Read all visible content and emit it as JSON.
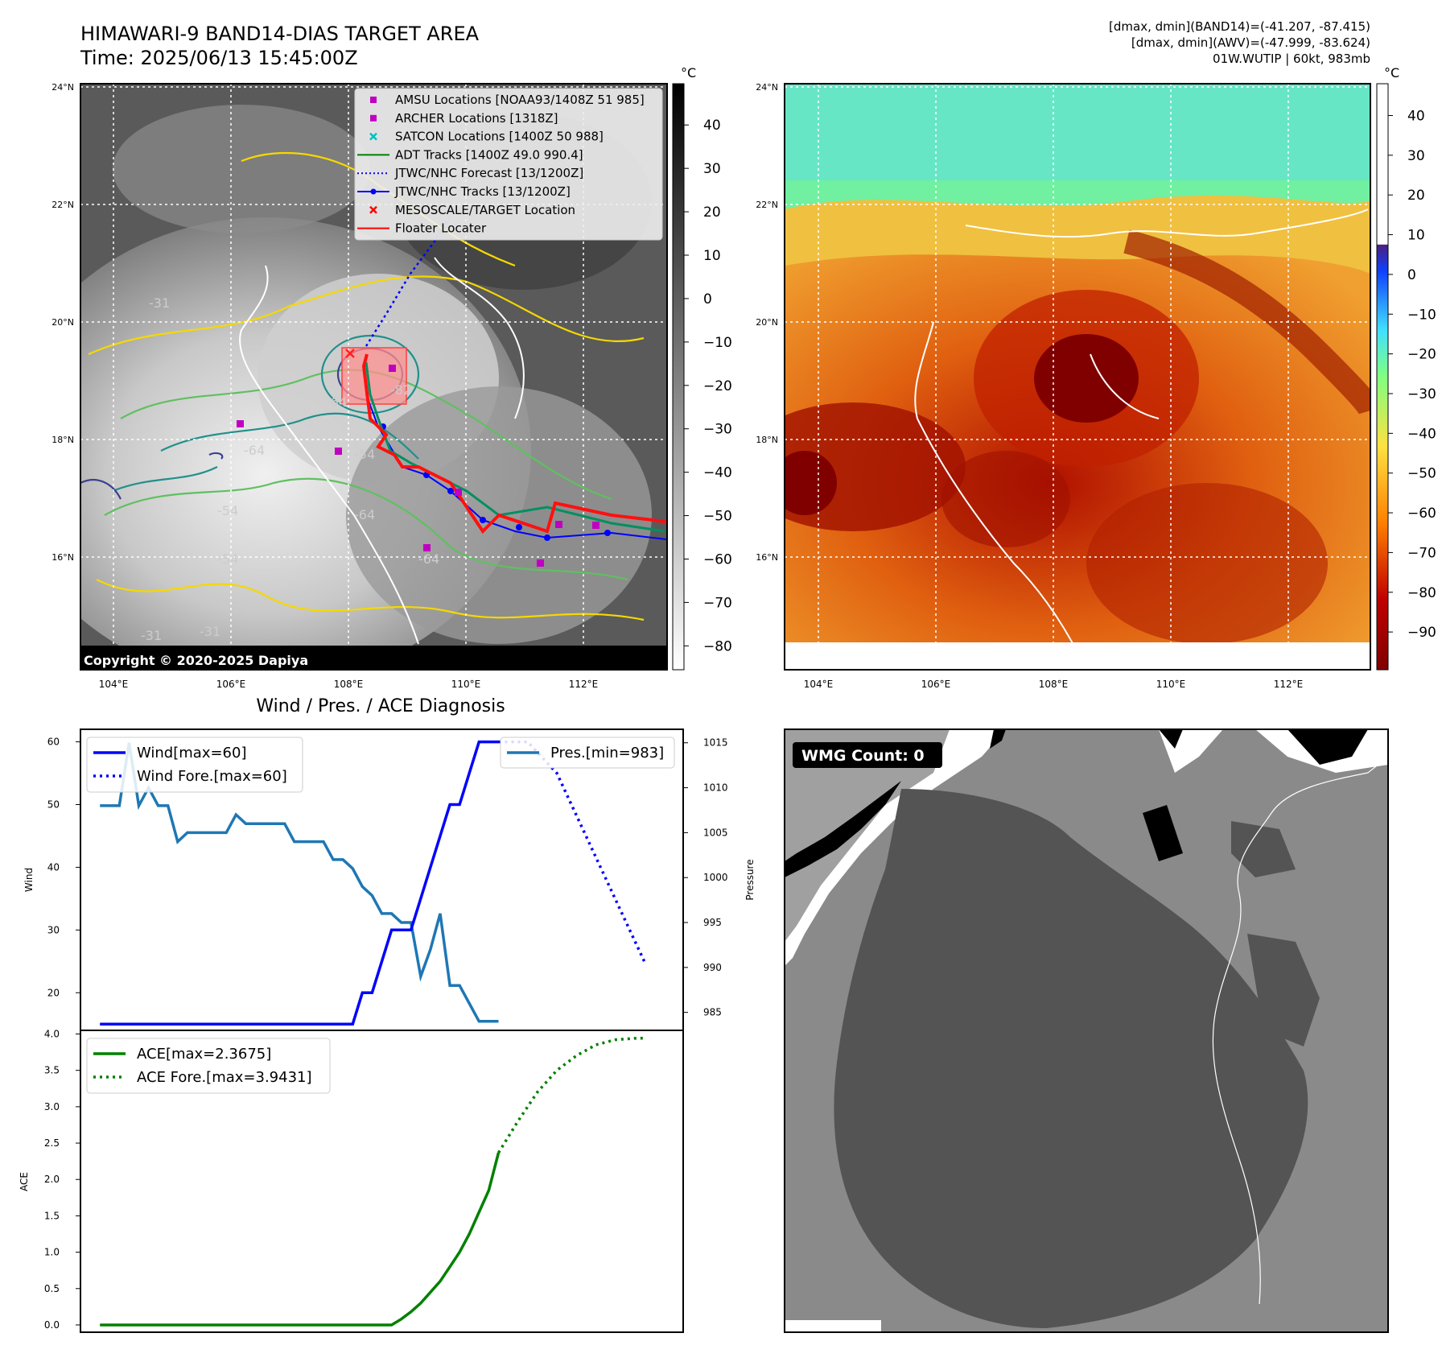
{
  "header": {
    "title": "HIMAWARI-9 BAND14-DIAS TARGET AREA",
    "time": "Time: 2025/06/13 15:45:00Z",
    "stats_band14": "[dmax, dmin](BAND14)=(-41.207, -87.415)",
    "stats_awv": "[dmax, dmin](AWV)=(-47.999, -83.624)",
    "storm": "01W.WUTIP | 60kt, 983mb"
  },
  "map": {
    "lat_labels": [
      "24°N",
      "22°N",
      "20°N",
      "18°N",
      "16°N"
    ],
    "lon_labels": [
      "104°E",
      "106°E",
      "108°E",
      "110°E",
      "112°E"
    ],
    "copyright": "Copyright © 2020-2025 Dapiya",
    "contour_labels": [
      "-31",
      "-54",
      "-64",
      "-54",
      "-64",
      "-82",
      "-64",
      "-54",
      "-31",
      "-31",
      "-64"
    ],
    "colorbar_left": {
      "unit": "°C",
      "ticks": [
        "40",
        "30",
        "20",
        "10",
        "0",
        "−10",
        "−20",
        "−30",
        "−40",
        "−50",
        "−60",
        "−70",
        "−80"
      ]
    },
    "colorbar_right": {
      "unit": "°C",
      "ticks": [
        "40",
        "30",
        "20",
        "10",
        "0",
        "−10",
        "−20",
        "−30",
        "−40",
        "−50",
        "−60",
        "−70",
        "−80",
        "−90"
      ]
    },
    "legend": [
      {
        "label": "AMSU Locations [NOAA93/1408Z 51 985]",
        "color": "#c000c0",
        "marker": "square"
      },
      {
        "label": "ARCHER Locations [1318Z]",
        "color": "#c000c0",
        "marker": "square"
      },
      {
        "label": "SATCON Locations [1400Z 50 988]",
        "color": "#00c0c0",
        "marker": "x"
      },
      {
        "label": "ADT Tracks [1400Z 49.0 990.4]",
        "color": "#008000",
        "marker": "line"
      },
      {
        "label": "JTWC/NHC Forecast [13/1200Z]",
        "color": "#0000ff",
        "marker": "dotted"
      },
      {
        "label": "JTWC/NHC Tracks [13/1200Z]",
        "color": "#0000ff",
        "marker": "line-dot"
      },
      {
        "label": "MESOSCALE/TARGET Location",
        "color": "#ff0000",
        "marker": "x"
      },
      {
        "label": "Floater Locater",
        "color": "#ff0000",
        "marker": "line"
      }
    ]
  },
  "wmg": {
    "label": "WMG Count: 0"
  },
  "chart_data": [
    {
      "type": "line",
      "title": "Wind / Pres. / ACE Diagnosis",
      "ylabel": "Wind",
      "y2label": "Pressure",
      "ylim": [
        14,
        62
      ],
      "y2lim": [
        983,
        1016.5
      ],
      "yticks": [
        "20",
        "30",
        "40",
        "50",
        "60"
      ],
      "y2ticks": [
        "985",
        "990",
        "995",
        "1000",
        "1005",
        "1010",
        "1015"
      ],
      "series": [
        {
          "name": "Wind[max=60]",
          "color": "#0000ff",
          "style": "solid",
          "axis": "left",
          "x": [
            0,
            1,
            2,
            3,
            4,
            5,
            6,
            7,
            8,
            9,
            10,
            11,
            12,
            13,
            14,
            15,
            16,
            17,
            18,
            19,
            20,
            21,
            22,
            23,
            24,
            25,
            26,
            27,
            28,
            29,
            30,
            31,
            32,
            33,
            34,
            35,
            36,
            37,
            38,
            39,
            40,
            41
          ],
          "values": [
            15,
            15,
            15,
            15,
            15,
            15,
            15,
            15,
            15,
            15,
            15,
            15,
            15,
            15,
            15,
            15,
            15,
            15,
            15,
            15,
            15,
            15,
            15,
            15,
            15,
            15,
            15,
            20,
            20,
            25,
            30,
            30,
            30,
            35,
            40,
            45,
            50,
            50,
            55,
            60,
            60,
            60
          ]
        },
        {
          "name": "Wind Fore.[max=60]",
          "color": "#0000ff",
          "style": "dotted",
          "axis": "left",
          "x": [
            41,
            44,
            47,
            50,
            53,
            56
          ],
          "values": [
            60,
            60,
            55,
            45,
            35,
            25
          ]
        },
        {
          "name": "Pres.[min=983]",
          "color": "#1f77b4",
          "style": "solid",
          "axis": "right",
          "x": [
            0,
            1,
            2,
            3,
            4,
            5,
            6,
            7,
            8,
            9,
            10,
            11,
            12,
            13,
            14,
            15,
            16,
            17,
            18,
            19,
            20,
            21,
            22,
            23,
            24,
            25,
            26,
            27,
            28,
            29,
            30,
            31,
            32,
            33,
            34,
            35,
            36,
            37,
            38,
            39,
            40,
            41
          ],
          "values": [
            1008,
            1008,
            1008,
            1015,
            1008,
            1010,
            1008,
            1008,
            1004,
            1005,
            1005,
            1005,
            1005,
            1005,
            1007,
            1006,
            1006,
            1006,
            1006,
            1006,
            1004,
            1004,
            1004,
            1004,
            1002,
            1002,
            1001,
            999,
            998,
            996,
            996,
            995,
            995,
            989,
            992,
            996,
            988,
            988,
            986,
            984,
            984,
            984
          ]
        }
      ]
    },
    {
      "type": "line",
      "ylabel": "ACE",
      "ylim": [
        -0.1,
        4.05
      ],
      "yticks": [
        "0.0",
        "0.5",
        "1.0",
        "1.5",
        "2.0",
        "2.5",
        "3.0",
        "3.5",
        "4.0"
      ],
      "series": [
        {
          "name": "ACE[max=2.3675]",
          "color": "#008000",
          "style": "solid",
          "x": [
            0,
            5,
            10,
            15,
            20,
            25,
            29,
            30,
            31,
            32,
            33,
            34,
            35,
            36,
            37,
            38,
            39,
            40,
            41
          ],
          "values": [
            0,
            0,
            0,
            0,
            0,
            0,
            0,
            0,
            0.08,
            0.18,
            0.3,
            0.45,
            0.6,
            0.8,
            1.0,
            1.25,
            1.55,
            1.85,
            2.3675
          ]
        },
        {
          "name": "ACE Fore.[max=3.9431]",
          "color": "#008000",
          "style": "dotted",
          "x": [
            41,
            43,
            45,
            47,
            49,
            51,
            53,
            55,
            56
          ],
          "values": [
            2.3675,
            2.8,
            3.2,
            3.5,
            3.7,
            3.85,
            3.92,
            3.94,
            3.9431
          ]
        }
      ]
    }
  ]
}
